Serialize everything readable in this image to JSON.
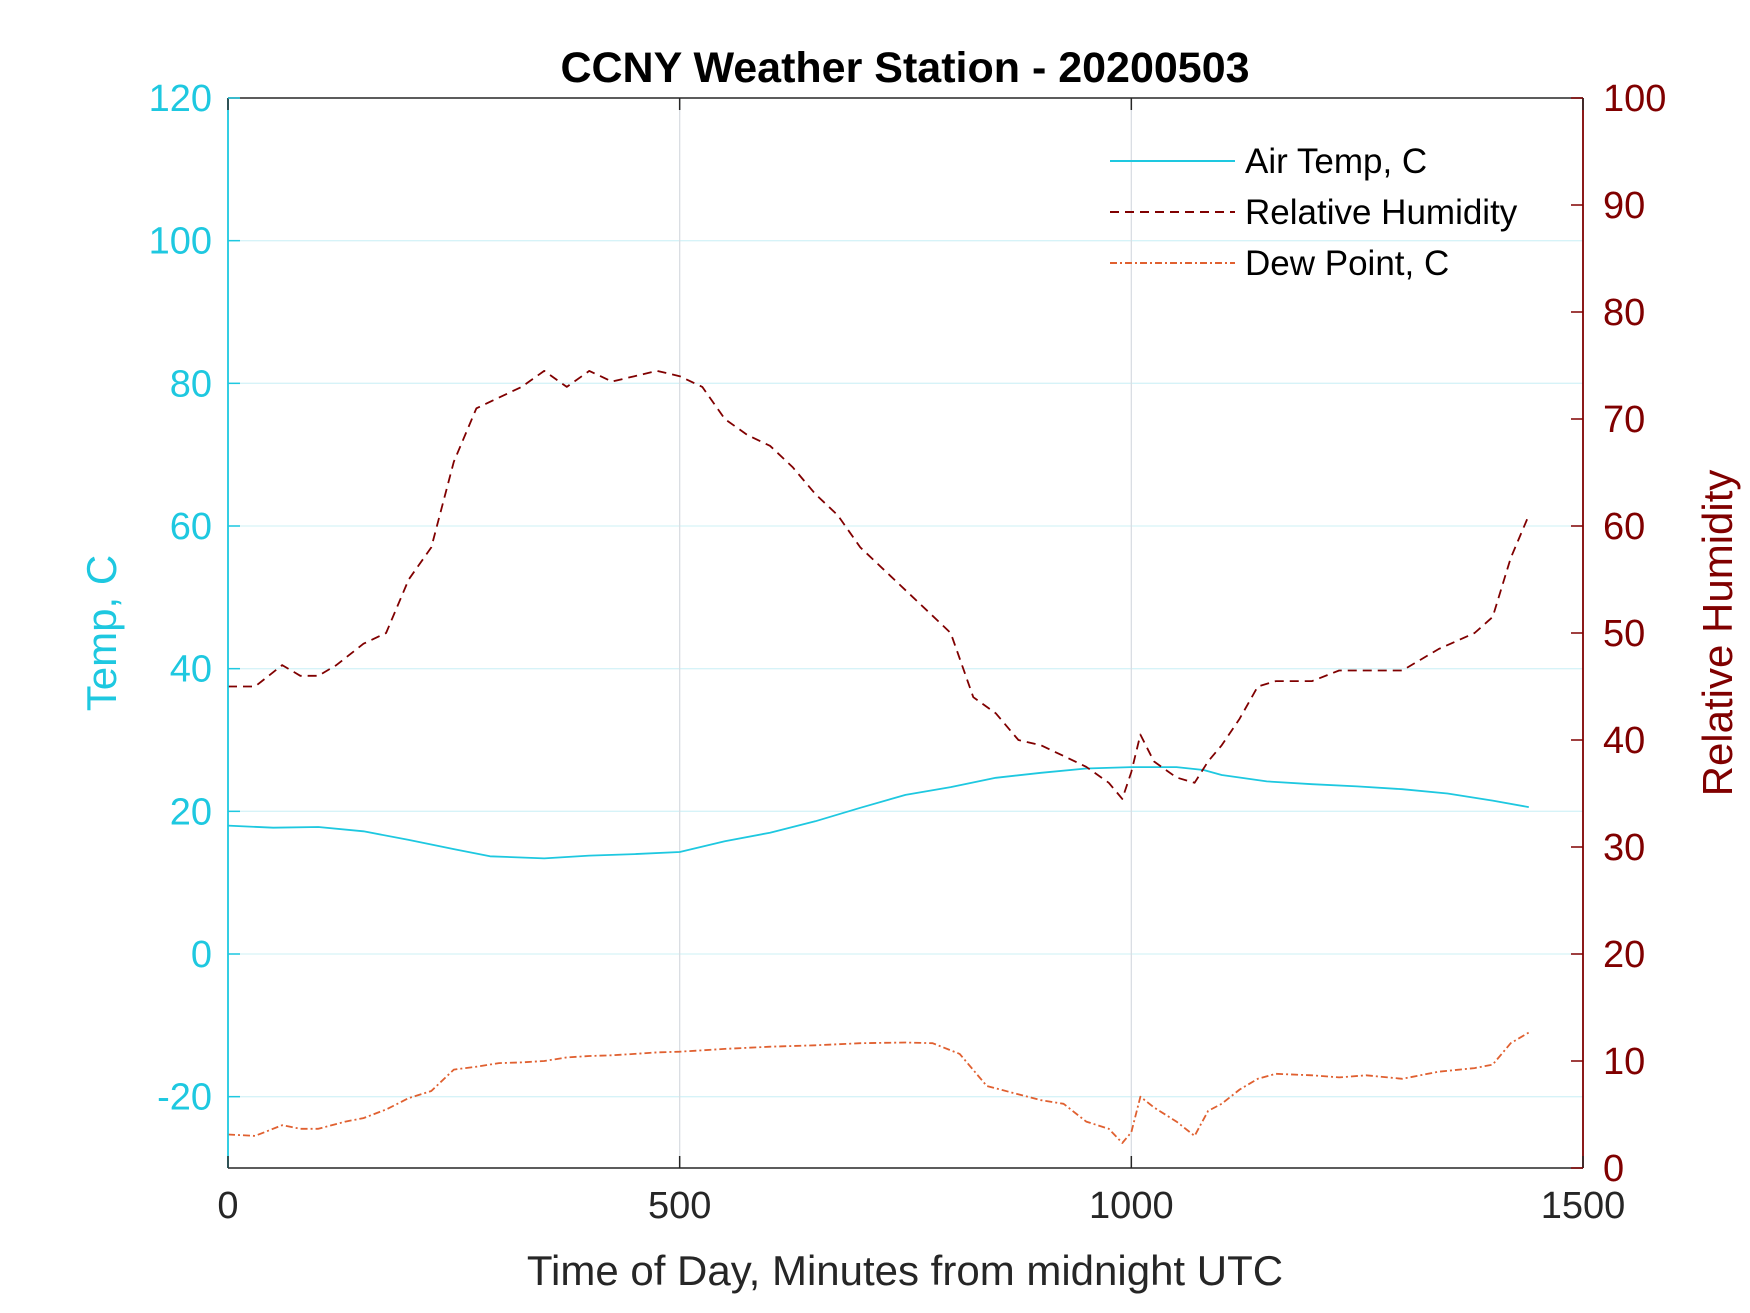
{
  "chart_data": {
    "type": "line",
    "title": "CCNY Weather Station - 20200503",
    "xlabel": "Time of Day, Minutes from midnight UTC",
    "ylabel_left": "Temp, C",
    "ylabel_right": "Relative Humidity",
    "xlim": [
      0,
      1500
    ],
    "ylim_left": [
      -30,
      120
    ],
    "ylim_right": [
      0,
      100
    ],
    "x_ticks": [
      "0",
      "500",
      "1000",
      "1500"
    ],
    "y_left_ticks": [
      "-20",
      "0",
      "20",
      "40",
      "60",
      "80",
      "100",
      "120"
    ],
    "y_right_ticks": [
      "0",
      "10",
      "20",
      "30",
      "40",
      "50",
      "60",
      "70",
      "80",
      "90",
      "100"
    ],
    "grid": true,
    "legend_position": "top-right",
    "colors": {
      "temp": "#1ec8e0",
      "humidity": "#800000",
      "dew": "#e06030"
    },
    "series": [
      {
        "name": "Air Temp, C",
        "axis": "left",
        "style": "solid",
        "x": [
          0,
          50,
          100,
          150,
          200,
          250,
          290,
          350,
          400,
          450,
          500,
          550,
          600,
          650,
          700,
          750,
          800,
          850,
          900,
          950,
          1000,
          1050,
          1080,
          1100,
          1150,
          1200,
          1250,
          1300,
          1350,
          1400,
          1440
        ],
        "values": [
          18,
          17.7,
          17.8,
          17.2,
          16,
          14.7,
          13.7,
          13.4,
          13.8,
          14,
          14.3,
          15.8,
          17,
          18.6,
          20.5,
          22.3,
          23.4,
          24.7,
          25.4,
          26,
          26.2,
          26.2,
          25.8,
          25.1,
          24.2,
          23.8,
          23.5,
          23.1,
          22.5,
          21.5,
          20.6
        ]
      },
      {
        "name": "Relative Humidity",
        "axis": "right",
        "style": "dashed",
        "x": [
          0,
          30,
          60,
          80,
          100,
          120,
          150,
          175,
          200,
          225,
          250,
          275,
          300,
          325,
          350,
          375,
          400,
          425,
          450,
          475,
          500,
          525,
          550,
          575,
          600,
          625,
          650,
          675,
          700,
          725,
          750,
          775,
          800,
          825,
          850,
          875,
          900,
          925,
          950,
          975,
          990,
          1000,
          1010,
          1025,
          1050,
          1070,
          1085,
          1100,
          1120,
          1140,
          1160,
          1200,
          1230,
          1260,
          1300,
          1340,
          1380,
          1400,
          1420,
          1440
        ],
        "values": [
          45,
          45,
          47,
          46,
          46,
          47,
          49,
          50,
          55,
          58,
          66,
          71,
          72,
          73,
          74.5,
          73,
          74.5,
          73.5,
          74,
          74.5,
          74,
          73,
          70,
          68.5,
          67.5,
          65.5,
          63,
          61,
          58,
          56,
          54,
          52,
          50,
          44,
          42.5,
          40,
          39.5,
          38.5,
          37.5,
          36,
          34.5,
          37,
          40.5,
          38,
          36.5,
          36,
          38,
          39.5,
          42,
          45,
          45.5,
          45.5,
          46.5,
          46.5,
          46.5,
          48.5,
          50,
          51.5,
          57,
          61
        ]
      },
      {
        "name": "Dew Point, C",
        "axis": "left",
        "style": "dashdot",
        "x": [
          0,
          30,
          60,
          80,
          100,
          130,
          150,
          175,
          200,
          225,
          250,
          275,
          300,
          325,
          350,
          375,
          400,
          425,
          450,
          475,
          500,
          550,
          600,
          650,
          700,
          750,
          780,
          810,
          840,
          870,
          900,
          925,
          950,
          975,
          990,
          1000,
          1010,
          1025,
          1050,
          1070,
          1085,
          1100,
          1120,
          1140,
          1160,
          1200,
          1230,
          1260,
          1300,
          1340,
          1380,
          1400,
          1420,
          1440
        ],
        "values": [
          -25.3,
          -25.5,
          -24,
          -24.5,
          -24.5,
          -23.5,
          -23,
          -21.8,
          -20.2,
          -19.2,
          -16.2,
          -15.8,
          -15.3,
          -15.2,
          -15,
          -14.5,
          -14.3,
          -14.2,
          -14,
          -13.8,
          -13.7,
          -13.3,
          -13,
          -12.8,
          -12.5,
          -12.4,
          -12.5,
          -14,
          -18.5,
          -19.5,
          -20.5,
          -21,
          -23.5,
          -24.5,
          -26.5,
          -25,
          -20,
          -21.5,
          -23.5,
          -25.5,
          -22,
          -21,
          -19,
          -17.5,
          -16.8,
          -17,
          -17.3,
          -17,
          -17.5,
          -16.5,
          -16,
          -15.5,
          -12.5,
          -11
        ]
      }
    ]
  }
}
